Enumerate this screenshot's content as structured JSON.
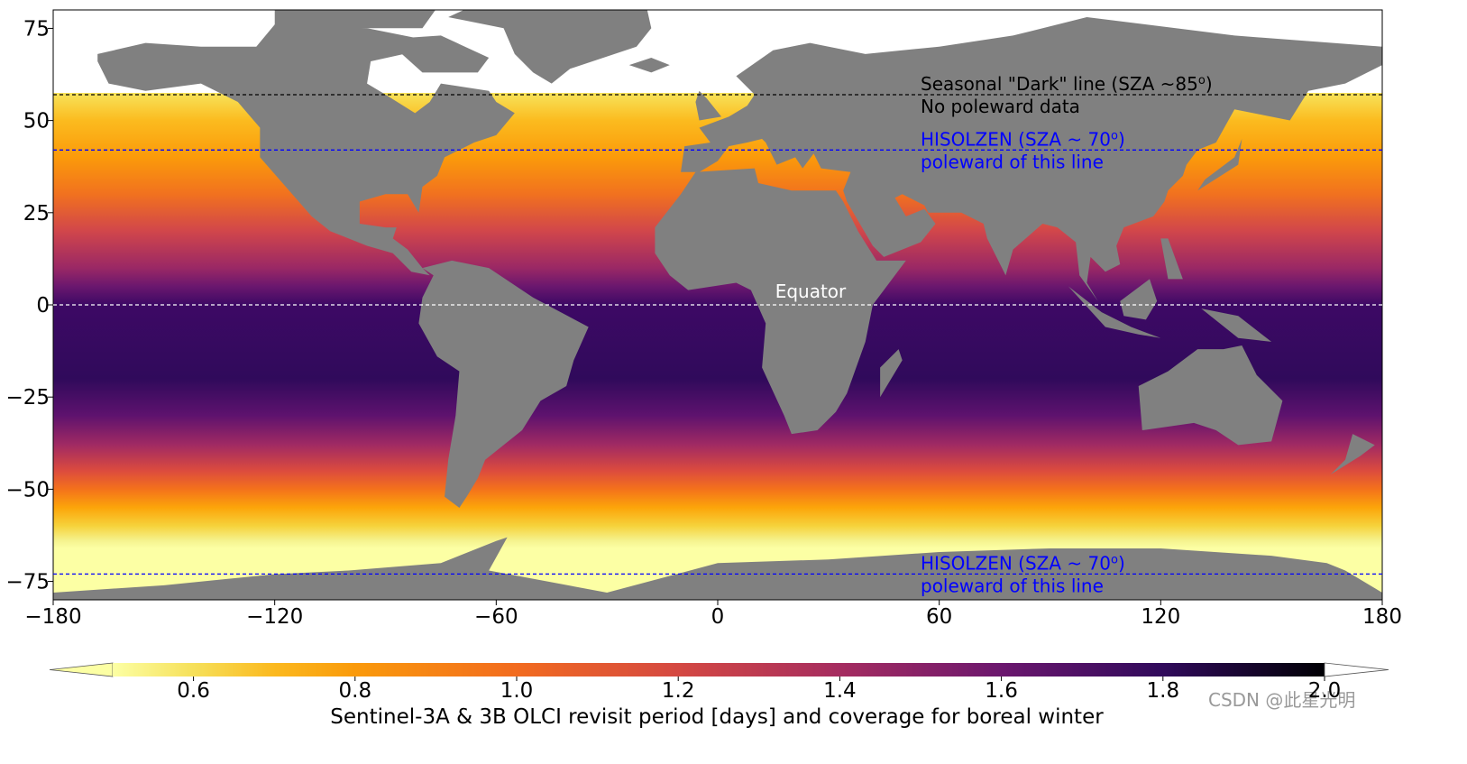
{
  "chart_data": {
    "type": "map",
    "xlim": [
      -180,
      180
    ],
    "ylim": [
      -80,
      80
    ],
    "xticks": [
      {
        "value": -180,
        "label": "−180"
      },
      {
        "value": -120,
        "label": "−120"
      },
      {
        "value": -60,
        "label": "−60"
      },
      0,
      60,
      120,
      180
    ],
    "yticks": [
      75,
      50,
      25,
      0,
      {
        "value": -25,
        "label": "−25"
      },
      {
        "value": -50,
        "label": "−50"
      },
      {
        "value": -75,
        "label": "−75"
      }
    ],
    "reference_lines": [
      {
        "value": 57,
        "color": "#000000",
        "text": "Seasonal \"Dark\" line (SZA ~85",
        "sup": "o",
        "end": ")",
        "subtext": "No poleward data"
      },
      {
        "value": 42,
        "color": "#0000ff",
        "text": "HISOLZEN (SZA ~ 70",
        "sup": "o",
        "end": ")",
        "subtext": "poleward of this line"
      },
      {
        "value": 0,
        "color": "#ffffff",
        "text": "Equator"
      },
      {
        "value": -73,
        "color": "#0000ff",
        "text": "HISOLZEN (SZA ~ 70",
        "sup": "o",
        "end": ")",
        "subtext": "poleward of this line"
      }
    ],
    "colorbar": {
      "label": "Sentinel-3A & 3B OLCI revisit period [days] and coverage for boreal winter",
      "clim": [
        0.5,
        2.0
      ],
      "ticks": [
        0.6,
        0.8,
        {
          "value": 1.0,
          "label": "1.0"
        },
        1.2,
        1.4,
        1.6,
        1.8,
        {
          "value": 2.0,
          "label": "2.0"
        }
      ]
    },
    "watermark": "CSDN @此星光明"
  }
}
